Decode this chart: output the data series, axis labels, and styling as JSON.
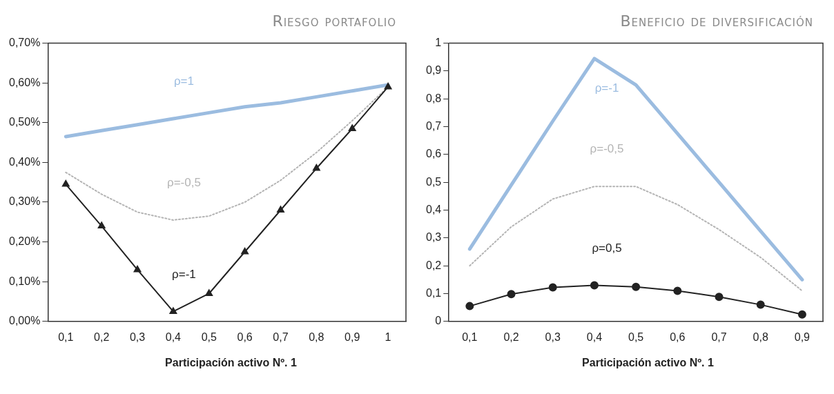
{
  "chart_data": [
    {
      "type": "line",
      "title": "Riesgo portafolio",
      "xlabel": "Participación activo Nº. 1",
      "categories": [
        "0,1",
        "0,2",
        "0,3",
        "0,4",
        "0,5",
        "0,6",
        "0,7",
        "0,8",
        "0,9",
        "1"
      ],
      "ylim": [
        0,
        0.7
      ],
      "yticks": [
        {
          "value": 0,
          "label": "0,00%"
        },
        {
          "value": 0.1,
          "label": "0,10%"
        },
        {
          "value": 0.2,
          "label": "0,20%"
        },
        {
          "value": 0.3,
          "label": "0,30%"
        },
        {
          "value": 0.4,
          "label": "0,40%"
        },
        {
          "value": 0.5,
          "label": "0,50%"
        },
        {
          "value": 0.6,
          "label": "0,60%"
        },
        {
          "value": 0.7,
          "label": "0,70%"
        }
      ],
      "grid": false,
      "legend": false,
      "series": [
        {
          "name": "ρ=1",
          "color": "#9bbce0",
          "marker": "none",
          "line_style": "solid",
          "values": [
            0.465,
            0.48,
            0.495,
            0.51,
            0.525,
            0.54,
            0.55,
            0.565,
            0.58,
            0.595
          ]
        },
        {
          "name": "ρ=-0,5",
          "color": "#b4b4b4",
          "marker": "none",
          "line_style": "dotted",
          "values": [
            0.375,
            0.32,
            0.275,
            0.255,
            0.265,
            0.3,
            0.355,
            0.425,
            0.505,
            0.59
          ]
        },
        {
          "name": "ρ=-1",
          "color": "#222222",
          "marker": "triangle",
          "line_style": "solid",
          "values": [
            0.345,
            0.24,
            0.13,
            0.025,
            0.07,
            0.175,
            0.28,
            0.385,
            0.485,
            0.59
          ]
        }
      ]
    },
    {
      "type": "line",
      "title": "Beneficio de diversificación",
      "xlabel": "Participación activo Nº. 1",
      "categories": [
        "0,1",
        "0,2",
        "0,3",
        "0,4",
        "0,5",
        "0,6",
        "0,7",
        "0,8",
        "0,9"
      ],
      "ylim": [
        0,
        1
      ],
      "yticks": [
        0,
        {
          "value": 0.1,
          "label": "0,1"
        },
        {
          "value": 0.2,
          "label": "0,2"
        },
        {
          "value": 0.3,
          "label": "0,3"
        },
        {
          "value": 0.4,
          "label": "0,4"
        },
        {
          "value": 0.5,
          "label": "0,5"
        },
        {
          "value": 0.6,
          "label": "0,6"
        },
        {
          "value": 0.7,
          "label": "0,7"
        },
        {
          "value": 0.8,
          "label": "0,8"
        },
        {
          "value": 0.9,
          "label": "0,9"
        },
        1
      ],
      "grid": false,
      "legend": false,
      "series": [
        {
          "name": "ρ=-1",
          "color": "#9bbce0",
          "marker": "none",
          "line_style": "solid",
          "values": [
            0.26,
            0.49,
            0.72,
            0.945,
            0.85,
            0.675,
            0.5,
            0.325,
            0.15
          ]
        },
        {
          "name": "ρ=-0,5",
          "color": "#b4b4b4",
          "marker": "none",
          "line_style": "dotted",
          "values": [
            0.2,
            0.34,
            0.44,
            0.485,
            0.485,
            0.42,
            0.33,
            0.23,
            0.11
          ]
        },
        {
          "name": "ρ=0,5",
          "color": "#222222",
          "marker": "circle",
          "line_style": "solid",
          "values": [
            0.055,
            0.098,
            0.122,
            0.13,
            0.124,
            0.11,
            0.088,
            0.06,
            0.025
          ]
        }
      ]
    }
  ]
}
